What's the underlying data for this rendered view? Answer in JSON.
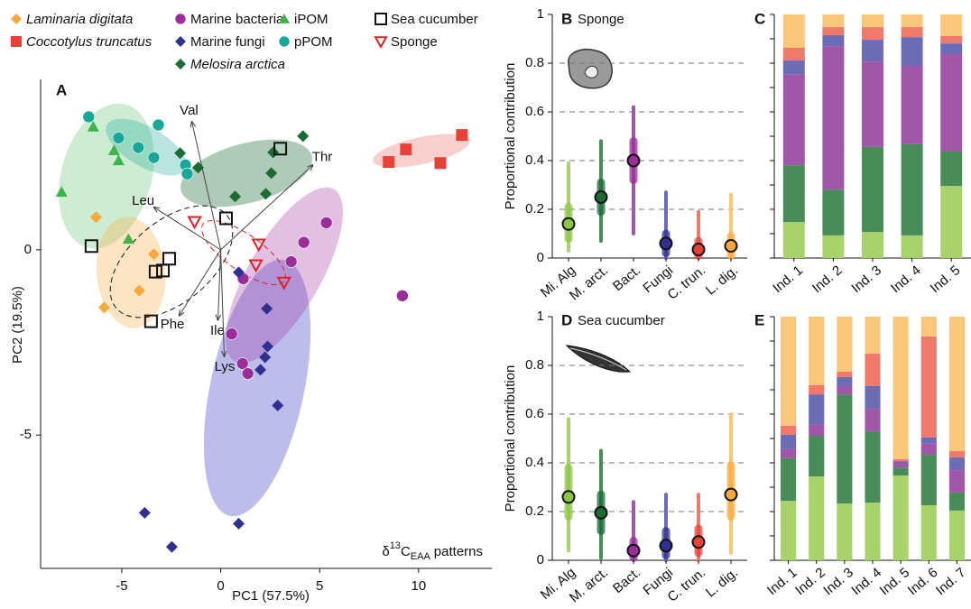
{
  "chart_data": [
    {
      "type": "scatter",
      "panel_label": "A",
      "x_label": "PC1 (57.5%)",
      "y_label": "PC2 (19.5%)",
      "annotation": {
        "symbol": "δ",
        "sup": "13",
        "base": "C",
        "sub": "EAA",
        "text": "patterns"
      },
      "xlim": [
        -9.1,
        13.7
      ],
      "ylim": [
        -8.6,
        4.6
      ],
      "xticks": [
        -5,
        0,
        5,
        10
      ],
      "yticks": [
        -5,
        0
      ],
      "series": [
        {
          "name": "Laminaria digitata",
          "color": "#f9a83c",
          "marker": "diamond",
          "filled": true,
          "italic": true,
          "x": [
            -6.3,
            -3.38,
            -4.11,
            -5.89
          ],
          "y": [
            0.88,
            -0.12,
            -1.1,
            -1.56
          ]
        },
        {
          "name": "Coccotylus truncatus",
          "color": "#e8413a",
          "marker": "square",
          "filled": true,
          "italic": true,
          "x": [
            8.49,
            9.36,
            11.1,
            12.19
          ],
          "y": [
            2.37,
            2.71,
            2.34,
            3.1
          ]
        },
        {
          "name": "Marine bacteria",
          "color": "#9a2d9a",
          "marker": "circle",
          "filled": true,
          "italic": false,
          "x": [
            5.34,
            4.2,
            3.56,
            9.18,
            1.14,
            0.55,
            1.1,
            1.37
          ],
          "y": [
            0.73,
            0.2,
            -0.32,
            -1.24,
            -0.78,
            -2.27,
            -3.07,
            -3.34
          ]
        },
        {
          "name": "Marine fungi",
          "color": "#2e3192",
          "marker": "diamond",
          "filled": true,
          "italic": false,
          "x": [
            0.91,
            2.33,
            2.37,
            2.24,
            2.01,
            2.88,
            -3.84,
            -2.47,
            0.91
          ],
          "y": [
            -0.61,
            -1.59,
            -2.61,
            -2.9,
            -3.24,
            -4.2,
            -7.1,
            -8.02,
            -7.39
          ]
        },
        {
          "name": "Melosira arctica",
          "color": "#1a6b34",
          "marker": "diamond",
          "filled": true,
          "italic": true,
          "x": [
            -2.05,
            -1.14,
            4.16,
            2.65,
            2.56,
            2.28,
            0.73
          ],
          "y": [
            2.61,
            2.22,
            3.07,
            2.63,
            2.07,
            1.51,
            1.44
          ]
        },
        {
          "name": "iPOM",
          "color": "#3cb44a",
          "marker": "triangle",
          "filled": true,
          "italic": false,
          "x": [
            -6.44,
            -5.39,
            -5.16,
            -8.04,
            -4.66
          ],
          "y": [
            3.32,
            2.68,
            2.41,
            1.56,
            0.29
          ]
        },
        {
          "name": "pPOM",
          "color": "#17a89a",
          "marker": "circle",
          "filled": true,
          "italic": false,
          "x": [
            -6.67,
            -3.15,
            -5.16,
            -4.16,
            -3.38,
            -1.78,
            -1.69
          ],
          "y": [
            3.59,
            3.37,
            3.02,
            2.76,
            2.49,
            2.29,
            2.05
          ]
        },
        {
          "name": "Sea cucumber",
          "color": "#111111",
          "marker": "square",
          "filled": false,
          "italic": false,
          "x": [
            3.01,
            0.27,
            -6.53,
            -2.6,
            -2.92,
            -3.29,
            -3.52
          ],
          "y": [
            2.73,
            0.85,
            0.1,
            -0.24,
            -0.56,
            -0.59,
            -1.93
          ]
        },
        {
          "name": "Sponge",
          "color": "#d7232a",
          "marker": "triangle-down",
          "filled": false,
          "italic": false,
          "x": [
            -1.32,
            1.92,
            1.78,
            3.2
          ],
          "y": [
            0.76,
            0.15,
            -0.41,
            -0.88
          ]
        }
      ],
      "loadings": {
        "labels": [
          "Val",
          "Thr",
          "Leu",
          "Phe",
          "Ile",
          "Lys"
        ],
        "x": [
          -1.46,
          4.66,
          -3.38,
          -2.1,
          -0.14,
          0.18
        ],
        "y": [
          3.46,
          2.29,
          1.15,
          -1.78,
          -1.9,
          -2.88
        ]
      }
    },
    {
      "type": "pointrange",
      "panel_label": "B",
      "title": "Sponge",
      "y_label": "Proportional contribution",
      "categories": [
        "Mi. Alg",
        "M. arct.",
        "Bact.",
        "Fungi",
        "C. trun.",
        "L. dig."
      ],
      "colors": [
        "#a8d26a",
        "#4a8b5a",
        "#a057a8",
        "#6a6cb5",
        "#ef7a6c",
        "#f9c77a"
      ],
      "point_colors": [
        "#8dc63f",
        "#1a6b34",
        "#9a2d9a",
        "#2e3192",
        "#e8413a",
        "#f9a83c"
      ],
      "values": [
        0.14,
        0.25,
        0.4,
        0.06,
        0.035,
        0.05
      ],
      "iqr": [
        [
          0.08,
          0.21
        ],
        [
          0.19,
          0.31
        ],
        [
          0.32,
          0.48
        ],
        [
          0.02,
          0.1
        ],
        [
          0.01,
          0.07
        ],
        [
          0.01,
          0.09
        ]
      ],
      "ci": [
        [
          0.03,
          0.39
        ],
        [
          0.07,
          0.48
        ],
        [
          0.1,
          0.62
        ],
        [
          0.0,
          0.27
        ],
        [
          0.0,
          0.19
        ],
        [
          0.0,
          0.26
        ]
      ],
      "ylim": [
        0,
        1
      ],
      "yticks": [
        0,
        0.2,
        0.4,
        0.6,
        0.8,
        1
      ],
      "grid": [
        0.2,
        0.4,
        0.6,
        0.8
      ]
    },
    {
      "type": "stacked_bar",
      "panel_label": "C",
      "categories": [
        "Ind. 1",
        "Ind. 2",
        "Ind. 3",
        "Ind. 4",
        "Ind. 5"
      ],
      "series": [
        {
          "color": "#a8d26a",
          "values": [
            0.148,
            0.093,
            0.107,
            0.093,
            0.296
          ]
        },
        {
          "color": "#4a8b5a",
          "values": [
            0.233,
            0.188,
            0.349,
            0.374,
            0.141
          ]
        },
        {
          "color": "#a057a8",
          "values": [
            0.374,
            0.589,
            0.351,
            0.322,
            0.4
          ]
        },
        {
          "color": "#6a6cb5",
          "values": [
            0.056,
            0.045,
            0.089,
            0.118,
            0.044
          ]
        },
        {
          "color": "#ef7a6c",
          "values": [
            0.052,
            0.033,
            0.052,
            0.041,
            0.03
          ]
        },
        {
          "color": "#f9c77a",
          "values": [
            0.137,
            0.052,
            0.052,
            0.052,
            0.089
          ]
        }
      ],
      "ylim": [
        0,
        1
      ],
      "yticks": [
        0,
        0.1,
        0.2,
        0.3,
        0.4,
        0.5,
        0.6,
        0.7,
        0.8,
        0.9,
        1
      ]
    },
    {
      "type": "pointrange",
      "panel_label": "D",
      "title": "Sea cucumber",
      "y_label": "Proportional contribution",
      "categories": [
        "Mi. Alg",
        "M. arct.",
        "Bact.",
        "Fungi",
        "C. trun.",
        "L. dig."
      ],
      "colors": [
        "#a8d26a",
        "#4a8b5a",
        "#a057a8",
        "#6a6cb5",
        "#ef7a6c",
        "#f9c77a"
      ],
      "point_colors": [
        "#8dc63f",
        "#1a6b34",
        "#9a2d9a",
        "#2e3192",
        "#e8413a",
        "#f9a83c"
      ],
      "values": [
        0.26,
        0.195,
        0.04,
        0.06,
        0.075,
        0.27
      ],
      "iqr": [
        [
          0.18,
          0.38
        ],
        [
          0.12,
          0.27
        ],
        [
          0.01,
          0.08
        ],
        [
          0.02,
          0.12
        ],
        [
          0.03,
          0.13
        ],
        [
          0.18,
          0.39
        ]
      ],
      "ci": [
        [
          0.04,
          0.58
        ],
        [
          0.01,
          0.45
        ],
        [
          0.0,
          0.24
        ],
        [
          0.0,
          0.27
        ],
        [
          0.0,
          0.27
        ],
        [
          0.03,
          0.6
        ]
      ],
      "ylim": [
        0,
        1
      ],
      "yticks": [
        0,
        0.2,
        0.4,
        0.6,
        0.8,
        1
      ],
      "grid": [
        0.2,
        0.4,
        0.6,
        0.8
      ]
    },
    {
      "type": "stacked_bar",
      "panel_label": "E",
      "categories": [
        "Ind. 1",
        "Ind. 2",
        "Ind. 3",
        "Ind. 4",
        "Ind. 5",
        "Ind. 6",
        "Ind. 7"
      ],
      "series": [
        {
          "color": "#a8d26a",
          "values": [
            0.244,
            0.344,
            0.233,
            0.237,
            0.348,
            0.226,
            0.204
          ]
        },
        {
          "color": "#4a8b5a",
          "values": [
            0.175,
            0.167,
            0.448,
            0.293,
            0.033,
            0.207,
            0.074
          ]
        },
        {
          "color": "#a057a8",
          "values": [
            0.037,
            0.048,
            0.034,
            0.092,
            0.019,
            0.048,
            0.092
          ]
        },
        {
          "color": "#6a6cb5",
          "values": [
            0.059,
            0.122,
            0.037,
            0.093,
            0.007,
            0.023,
            0.052
          ]
        },
        {
          "color": "#ef7a6c",
          "values": [
            0.037,
            0.038,
            0.022,
            0.133,
            0.008,
            0.415,
            0.026
          ]
        },
        {
          "color": "#f9c77a",
          "values": [
            0.448,
            0.281,
            0.226,
            0.152,
            0.585,
            0.081,
            0.552
          ]
        }
      ],
      "ylim": [
        0,
        1
      ],
      "yticks": [
        0,
        0.1,
        0.2,
        0.3,
        0.4,
        0.5,
        0.6,
        0.7,
        0.8,
        0.9,
        1
      ]
    }
  ]
}
